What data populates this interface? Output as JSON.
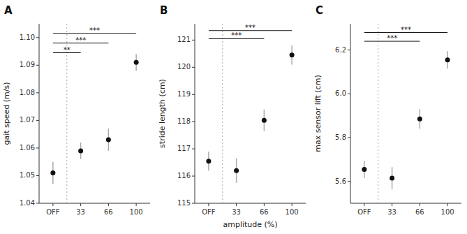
{
  "chart_data": [
    {
      "type": "errorbar",
      "title": "A",
      "ylabel": "gait speed (m/s)",
      "categories": [
        "OFF",
        "33",
        "66",
        "100"
      ],
      "values": [
        1.051,
        1.059,
        1.063,
        1.091
      ],
      "errors_low": [
        0.004,
        0.003,
        0.004,
        0.003
      ],
      "errors_high": [
        0.004,
        0.003,
        0.004,
        0.003
      ],
      "color": "#111111",
      "ylim": [
        1.04,
        1.105
      ],
      "yticks": [
        1.04,
        1.05,
        1.06,
        1.07,
        1.08,
        1.09,
        {
          "value": 1.1,
          "label": "1.10"
        }
      ],
      "grid": false,
      "divider_after": "OFF",
      "annotations": [
        {
          "x1": "OFF",
          "x2": "33",
          "y": 1.0945,
          "label": "**"
        },
        {
          "x1": "OFF",
          "x2": "66",
          "y": 1.098,
          "label": "***"
        },
        {
          "x1": "OFF",
          "x2": "100",
          "y": 1.1015,
          "label": "***"
        }
      ]
    },
    {
      "type": "errorbar",
      "title": "B",
      "ylabel": "stride length (cm)",
      "xlabel": "amplitude (%)",
      "categories": [
        "OFF",
        "33",
        "66",
        "100"
      ],
      "values": [
        116.55,
        116.2,
        118.05,
        120.45
      ],
      "errors_low": [
        0.35,
        0.45,
        0.4,
        0.35
      ],
      "errors_high": [
        0.35,
        0.45,
        0.4,
        0.35
      ],
      "color": "#111111",
      "ylim": [
        115,
        121.6
      ],
      "yticks": [
        115,
        116,
        117,
        118,
        119,
        120,
        121
      ],
      "grid": false,
      "divider_after": "OFF",
      "annotations": [
        {
          "x1": "OFF",
          "x2": "66",
          "y": 121.05,
          "label": "***"
        },
        {
          "x1": "OFF",
          "x2": "100",
          "y": 121.35,
          "label": "***"
        }
      ]
    },
    {
      "type": "errorbar",
      "title": "C",
      "ylabel": "max sensor lift (cm)",
      "categories": [
        "OFF",
        "33",
        "66",
        "100"
      ],
      "values": [
        5.655,
        5.615,
        5.885,
        6.155
      ],
      "errors_low": [
        0.04,
        0.05,
        0.045,
        0.04
      ],
      "errors_high": [
        0.04,
        0.05,
        0.045,
        0.04
      ],
      "color": "#111111",
      "ylim": [
        5.5,
        6.32
      ],
      "yticks": [
        5.6,
        5.8,
        {
          "value": 6.0,
          "label": "6.0"
        },
        6.2
      ],
      "grid": false,
      "divider_after": "OFF",
      "annotations": [
        {
          "x1": "OFF",
          "x2": "66",
          "y": 6.24,
          "label": "***"
        },
        {
          "x1": "OFF",
          "x2": "100",
          "y": 6.28,
          "label": "***"
        }
      ]
    }
  ]
}
